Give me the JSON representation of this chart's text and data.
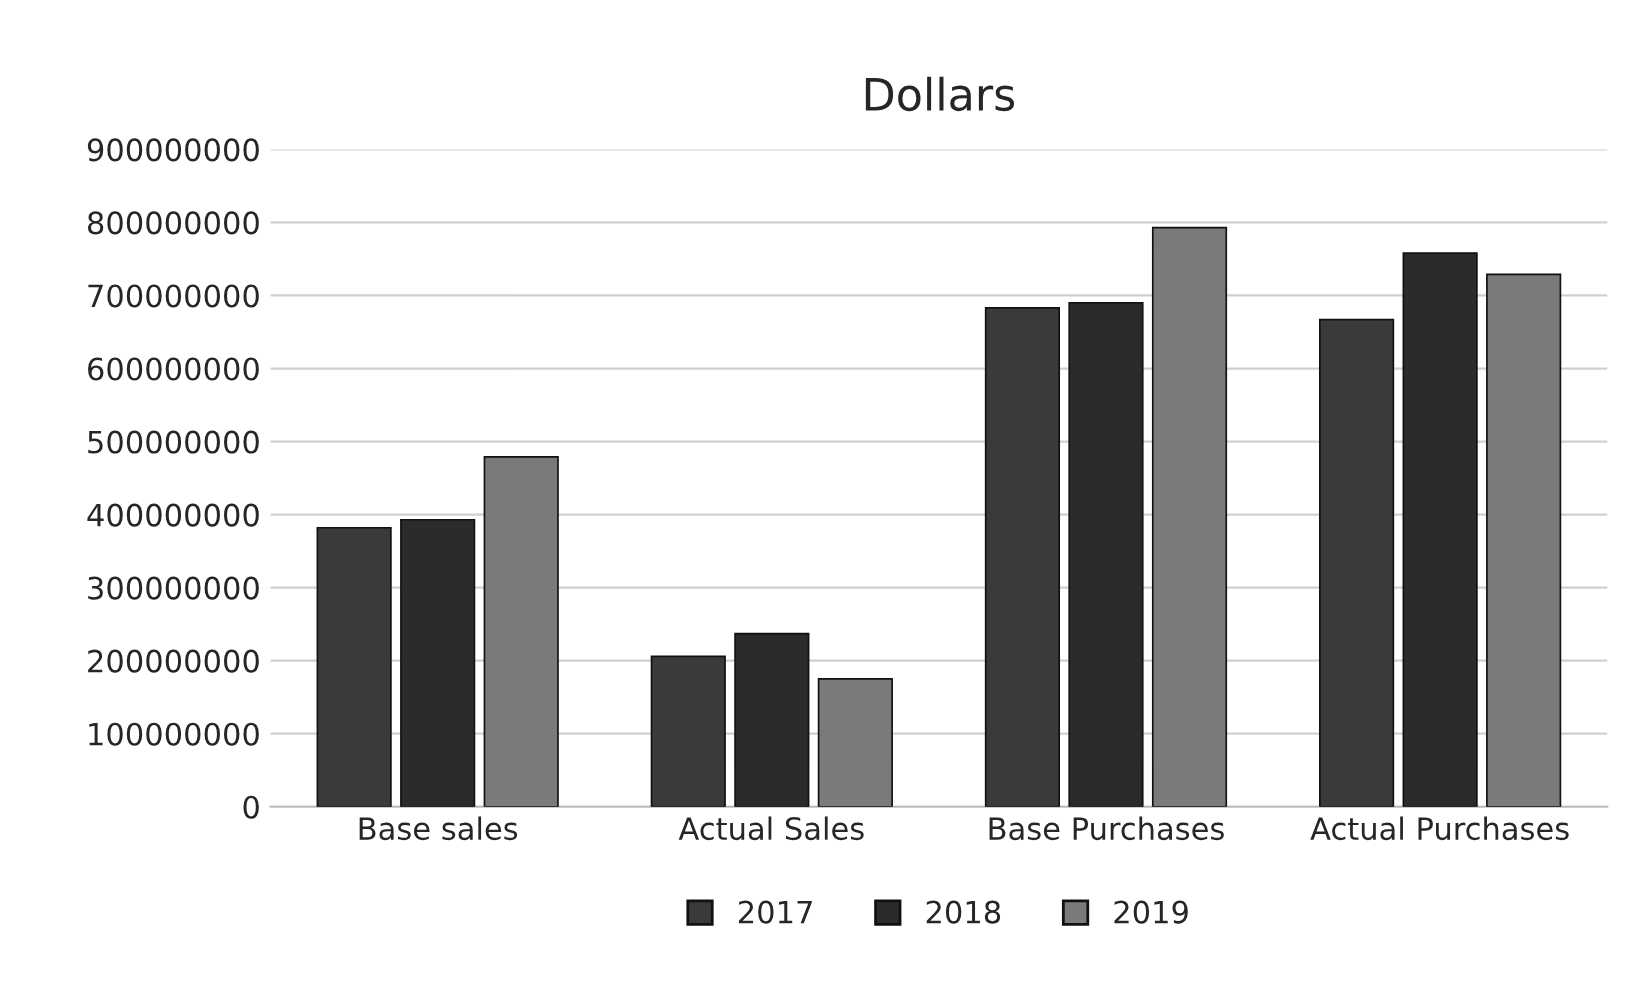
{
  "chart_data": {
    "type": "bar",
    "title": "Dollars",
    "categories": [
      "Base sales",
      "Actual Sales",
      "Base Purchases",
      "Actual Purchases"
    ],
    "series": [
      {
        "name": "2017",
        "color": "#3a3a3a",
        "values": [
          382000000,
          206000000,
          683000000,
          667000000
        ]
      },
      {
        "name": "2018",
        "color": "#2b2b2b",
        "values": [
          393000000,
          237000000,
          690000000,
          758000000
        ]
      },
      {
        "name": "2019",
        "color": "#7a7a7a",
        "values": [
          479000000,
          175000000,
          793000000,
          729000000
        ]
      }
    ],
    "ylim": [
      0,
      900000000
    ],
    "yticks": [
      0,
      100000000,
      200000000,
      300000000,
      400000000,
      500000000,
      600000000,
      700000000,
      800000000,
      900000000
    ],
    "grid": "y",
    "legend": "bottom"
  }
}
